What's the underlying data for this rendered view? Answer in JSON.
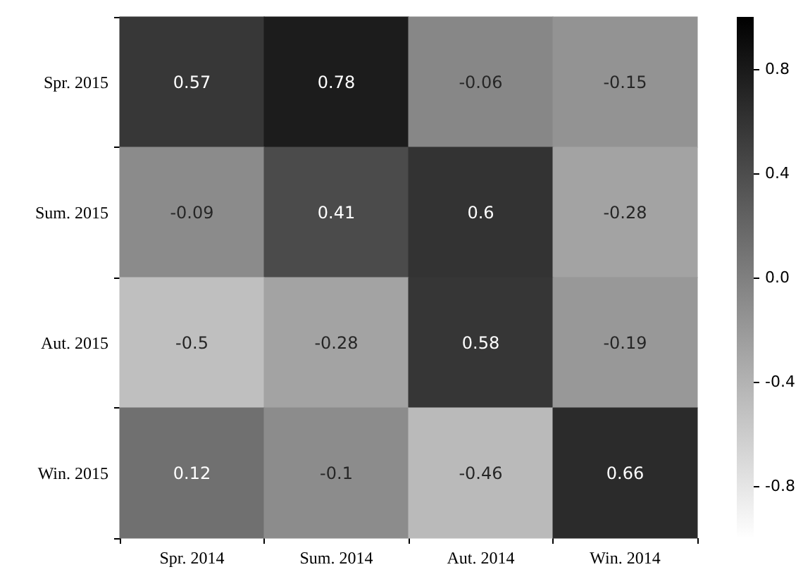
{
  "chart_data": {
    "type": "heatmap",
    "categories": [
      "Spr. 2014",
      "Sum. 2014",
      "Aut. 2014",
      "Win. 2014"
    ],
    "y_categories": [
      "Spr. 2015",
      "Sum. 2015",
      "Aut. 2015",
      "Win. 2015"
    ],
    "cells": [
      [
        0.57,
        0.78,
        -0.06,
        -0.15
      ],
      [
        -0.09,
        0.41,
        0.6,
        -0.28
      ],
      [
        -0.5,
        -0.28,
        0.58,
        -0.19
      ],
      [
        0.12,
        -0.1,
        -0.46,
        0.66
      ]
    ],
    "data_labels": true,
    "clim": [
      -1,
      1
    ],
    "cticks": [
      -0.8,
      -0.4,
      {
        "value": 0,
        "label": "0.0"
      },
      0.4,
      0.8
    ]
  }
}
